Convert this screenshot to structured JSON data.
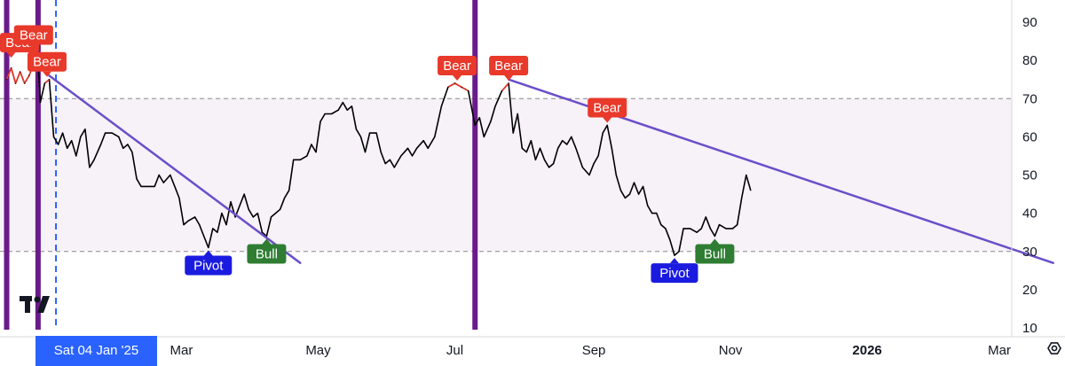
{
  "chart_data": {
    "type": "line",
    "title": "",
    "xlabel": "",
    "ylabel": "",
    "ylim": [
      10,
      95
    ],
    "y_ticks": [
      10,
      20,
      30,
      40,
      50,
      60,
      70,
      80,
      90
    ],
    "x_ticks": [
      {
        "label": "Mar",
        "date": "2025-03-01",
        "bold": false
      },
      {
        "label": "May",
        "date": "2025-05-01",
        "bold": false
      },
      {
        "label": "Jul",
        "date": "2025-07-01",
        "bold": false
      },
      {
        "label": "Sep",
        "date": "2025-09-01",
        "bold": false
      },
      {
        "label": "Nov",
        "date": "2025-11-01",
        "bold": false
      },
      {
        "label": "2026",
        "date": "2026-01-01",
        "bold": true
      },
      {
        "label": "Mar",
        "date": "2026-03-01",
        "bold": false
      }
    ],
    "xlim": [
      "2024-12-12",
      "2026-04-08"
    ],
    "crosshair": {
      "date": "2025-01-04",
      "label": "Sat 04 Jan '25"
    },
    "grid": false,
    "band": {
      "lower": 30,
      "upper": 70
    },
    "reference_lines": [
      70,
      30
    ],
    "vertical_markers": [
      "2024-12-13",
      "2024-12-27",
      "2025-07-10"
    ],
    "series": [
      {
        "color": "#000000",
        "overbought_color": "#e8392a",
        "overbought_threshold": 70,
        "points": [
          [
            "2024-12-13",
            75
          ],
          [
            "2024-12-15",
            78
          ],
          [
            "2024-12-17",
            74
          ],
          [
            "2024-12-19",
            77
          ],
          [
            "2024-12-21",
            74
          ],
          [
            "2024-12-23",
            76
          ],
          [
            "2024-12-25",
            79
          ],
          [
            "2024-12-27",
            80
          ],
          [
            "2024-12-28",
            69
          ],
          [
            "2024-12-30",
            74
          ],
          [
            "2025-01-01",
            75
          ],
          [
            "2025-01-03",
            60
          ],
          [
            "2025-01-05",
            58
          ],
          [
            "2025-01-07",
            61
          ],
          [
            "2025-01-09",
            57
          ],
          [
            "2025-01-11",
            59
          ],
          [
            "2025-01-13",
            55
          ],
          [
            "2025-01-15",
            60
          ],
          [
            "2025-01-17",
            62
          ],
          [
            "2025-01-19",
            52
          ],
          [
            "2025-01-21",
            54
          ],
          [
            "2025-01-24",
            58
          ],
          [
            "2025-01-26",
            61
          ],
          [
            "2025-01-29",
            61
          ],
          [
            "2025-02-01",
            60
          ],
          [
            "2025-02-03",
            57
          ],
          [
            "2025-02-05",
            58
          ],
          [
            "2025-02-07",
            56
          ],
          [
            "2025-02-09",
            49
          ],
          [
            "2025-02-11",
            47
          ],
          [
            "2025-02-14",
            47
          ],
          [
            "2025-02-17",
            47
          ],
          [
            "2025-02-19",
            50
          ],
          [
            "2025-02-21",
            48
          ],
          [
            "2025-02-24",
            50
          ],
          [
            "2025-02-26",
            47
          ],
          [
            "2025-02-28",
            44
          ],
          [
            "2025-03-02",
            37
          ],
          [
            "2025-03-04",
            38
          ],
          [
            "2025-03-07",
            39
          ],
          [
            "2025-03-09",
            37
          ],
          [
            "2025-03-11",
            34
          ],
          [
            "2025-03-13",
            31
          ],
          [
            "2025-03-15",
            36
          ],
          [
            "2025-03-17",
            35
          ],
          [
            "2025-03-19",
            40
          ],
          [
            "2025-03-21",
            37
          ],
          [
            "2025-03-23",
            43
          ],
          [
            "2025-03-25",
            39
          ],
          [
            "2025-03-27",
            42
          ],
          [
            "2025-03-29",
            45
          ],
          [
            "2025-03-31",
            41
          ],
          [
            "2025-04-02",
            39
          ],
          [
            "2025-04-04",
            40
          ],
          [
            "2025-04-06",
            35
          ],
          [
            "2025-04-08",
            34
          ],
          [
            "2025-04-10",
            39
          ],
          [
            "2025-04-12",
            40
          ],
          [
            "2025-04-14",
            41
          ],
          [
            "2025-04-16",
            44
          ],
          [
            "2025-04-18",
            46
          ],
          [
            "2025-04-20",
            54
          ],
          [
            "2025-04-23",
            54
          ],
          [
            "2025-04-26",
            55
          ],
          [
            "2025-04-28",
            58
          ],
          [
            "2025-04-30",
            56
          ],
          [
            "2025-05-02",
            64
          ],
          [
            "2025-05-04",
            66
          ],
          [
            "2025-05-07",
            66
          ],
          [
            "2025-05-10",
            67
          ],
          [
            "2025-05-12",
            69
          ],
          [
            "2025-05-14",
            67
          ],
          [
            "2025-05-16",
            68
          ],
          [
            "2025-05-18",
            62
          ],
          [
            "2025-05-20",
            60
          ],
          [
            "2025-05-22",
            56
          ],
          [
            "2025-05-24",
            61
          ],
          [
            "2025-05-27",
            61
          ],
          [
            "2025-05-29",
            56
          ],
          [
            "2025-05-31",
            53
          ],
          [
            "2025-06-02",
            54
          ],
          [
            "2025-06-04",
            52
          ],
          [
            "2025-06-07",
            55
          ],
          [
            "2025-06-10",
            57
          ],
          [
            "2025-06-12",
            55
          ],
          [
            "2025-06-14",
            57
          ],
          [
            "2025-06-17",
            59
          ],
          [
            "2025-06-19",
            57
          ],
          [
            "2025-06-22",
            60
          ],
          [
            "2025-06-25",
            68
          ],
          [
            "2025-06-28",
            73
          ],
          [
            "2025-07-01",
            74
          ],
          [
            "2025-07-04",
            73
          ],
          [
            "2025-07-07",
            72
          ],
          [
            "2025-07-10",
            63
          ],
          [
            "2025-07-12",
            65
          ],
          [
            "2025-07-14",
            60
          ],
          [
            "2025-07-17",
            64
          ],
          [
            "2025-07-19",
            68
          ],
          [
            "2025-07-22",
            72
          ],
          [
            "2025-07-25",
            74
          ],
          [
            "2025-07-27",
            61
          ],
          [
            "2025-07-29",
            66
          ],
          [
            "2025-07-31",
            57
          ],
          [
            "2025-08-02",
            56
          ],
          [
            "2025-08-04",
            59
          ],
          [
            "2025-08-06",
            54
          ],
          [
            "2025-08-08",
            57
          ],
          [
            "2025-08-10",
            54
          ],
          [
            "2025-08-12",
            52
          ],
          [
            "2025-08-14",
            53
          ],
          [
            "2025-08-16",
            57
          ],
          [
            "2025-08-18",
            59
          ],
          [
            "2025-08-20",
            58
          ],
          [
            "2025-08-22",
            60
          ],
          [
            "2025-08-24",
            57
          ],
          [
            "2025-08-27",
            52
          ],
          [
            "2025-08-30",
            50
          ],
          [
            "2025-09-01",
            53
          ],
          [
            "2025-09-03",
            55
          ],
          [
            "2025-09-05",
            61
          ],
          [
            "2025-09-07",
            63
          ],
          [
            "2025-09-09",
            57
          ],
          [
            "2025-09-11",
            50
          ],
          [
            "2025-09-13",
            46
          ],
          [
            "2025-09-15",
            44
          ],
          [
            "2025-09-17",
            45
          ],
          [
            "2025-09-19",
            48
          ],
          [
            "2025-09-21",
            45
          ],
          [
            "2025-09-23",
            47
          ],
          [
            "2025-09-25",
            42
          ],
          [
            "2025-09-27",
            40
          ],
          [
            "2025-09-29",
            40
          ],
          [
            "2025-10-01",
            37
          ],
          [
            "2025-10-03",
            36
          ],
          [
            "2025-10-05",
            33
          ],
          [
            "2025-10-07",
            29
          ],
          [
            "2025-10-09",
            30
          ],
          [
            "2025-10-11",
            36
          ],
          [
            "2025-10-14",
            36
          ],
          [
            "2025-10-17",
            35
          ],
          [
            "2025-10-19",
            36
          ],
          [
            "2025-10-21",
            39
          ],
          [
            "2025-10-23",
            36
          ],
          [
            "2025-10-25",
            34
          ],
          [
            "2025-10-27",
            37
          ],
          [
            "2025-10-30",
            36
          ],
          [
            "2025-11-02",
            36
          ],
          [
            "2025-11-04",
            37
          ],
          [
            "2025-11-06",
            44
          ],
          [
            "2025-11-08",
            50
          ],
          [
            "2025-11-10",
            46
          ]
        ]
      }
    ],
    "trendlines": [
      {
        "color": "#6a4fc8",
        "from": [
          "2025-01-01",
          76
        ],
        "to": [
          "2025-04-23",
          27
        ]
      },
      {
        "color": "#6a4fc8",
        "from": [
          "2025-07-25",
          75
        ],
        "to": [
          "2026-03-25",
          27
        ]
      }
    ],
    "signals": [
      {
        "label": "Bear",
        "color": "#e8392a",
        "date": "2024-12-15",
        "value": 80,
        "position": "above"
      },
      {
        "label": "Bear",
        "color": "#e8392a",
        "date": "2024-12-25",
        "value": 82,
        "position": "above"
      },
      {
        "label": "Bear",
        "color": "#e8392a",
        "date": "2024-12-31",
        "value": 75,
        "position": "above"
      },
      {
        "label": "Pivot",
        "color": "#1b1be0",
        "date": "2025-03-13",
        "value": 31,
        "position": "below"
      },
      {
        "label": "Bull",
        "color": "#2e7d32",
        "date": "2025-04-08",
        "value": 34,
        "position": "below"
      },
      {
        "label": "Bear",
        "color": "#e8392a",
        "date": "2025-07-02",
        "value": 74,
        "position": "above"
      },
      {
        "label": "Bear",
        "color": "#e8392a",
        "date": "2025-07-25",
        "value": 74,
        "position": "above"
      },
      {
        "label": "Bear",
        "color": "#e8392a",
        "date": "2025-09-07",
        "value": 63,
        "position": "above"
      },
      {
        "label": "Pivot",
        "color": "#1b1be0",
        "date": "2025-10-07",
        "value": 29,
        "position": "below"
      },
      {
        "label": "Bull",
        "color": "#2e7d32",
        "date": "2025-10-25",
        "value": 34,
        "position": "below"
      }
    ],
    "colors": {
      "band_fill": "#f7f1f8",
      "reference_line": "#8a8a8a",
      "vertical_marker": "#6a1b8a",
      "crosshair": "#2962ff",
      "axis_text": "#131722",
      "separator": "#d9d9d9"
    }
  },
  "watermark": {
    "name": "tradingview-logo"
  },
  "settings_icon": {
    "name": "settings-icon"
  }
}
